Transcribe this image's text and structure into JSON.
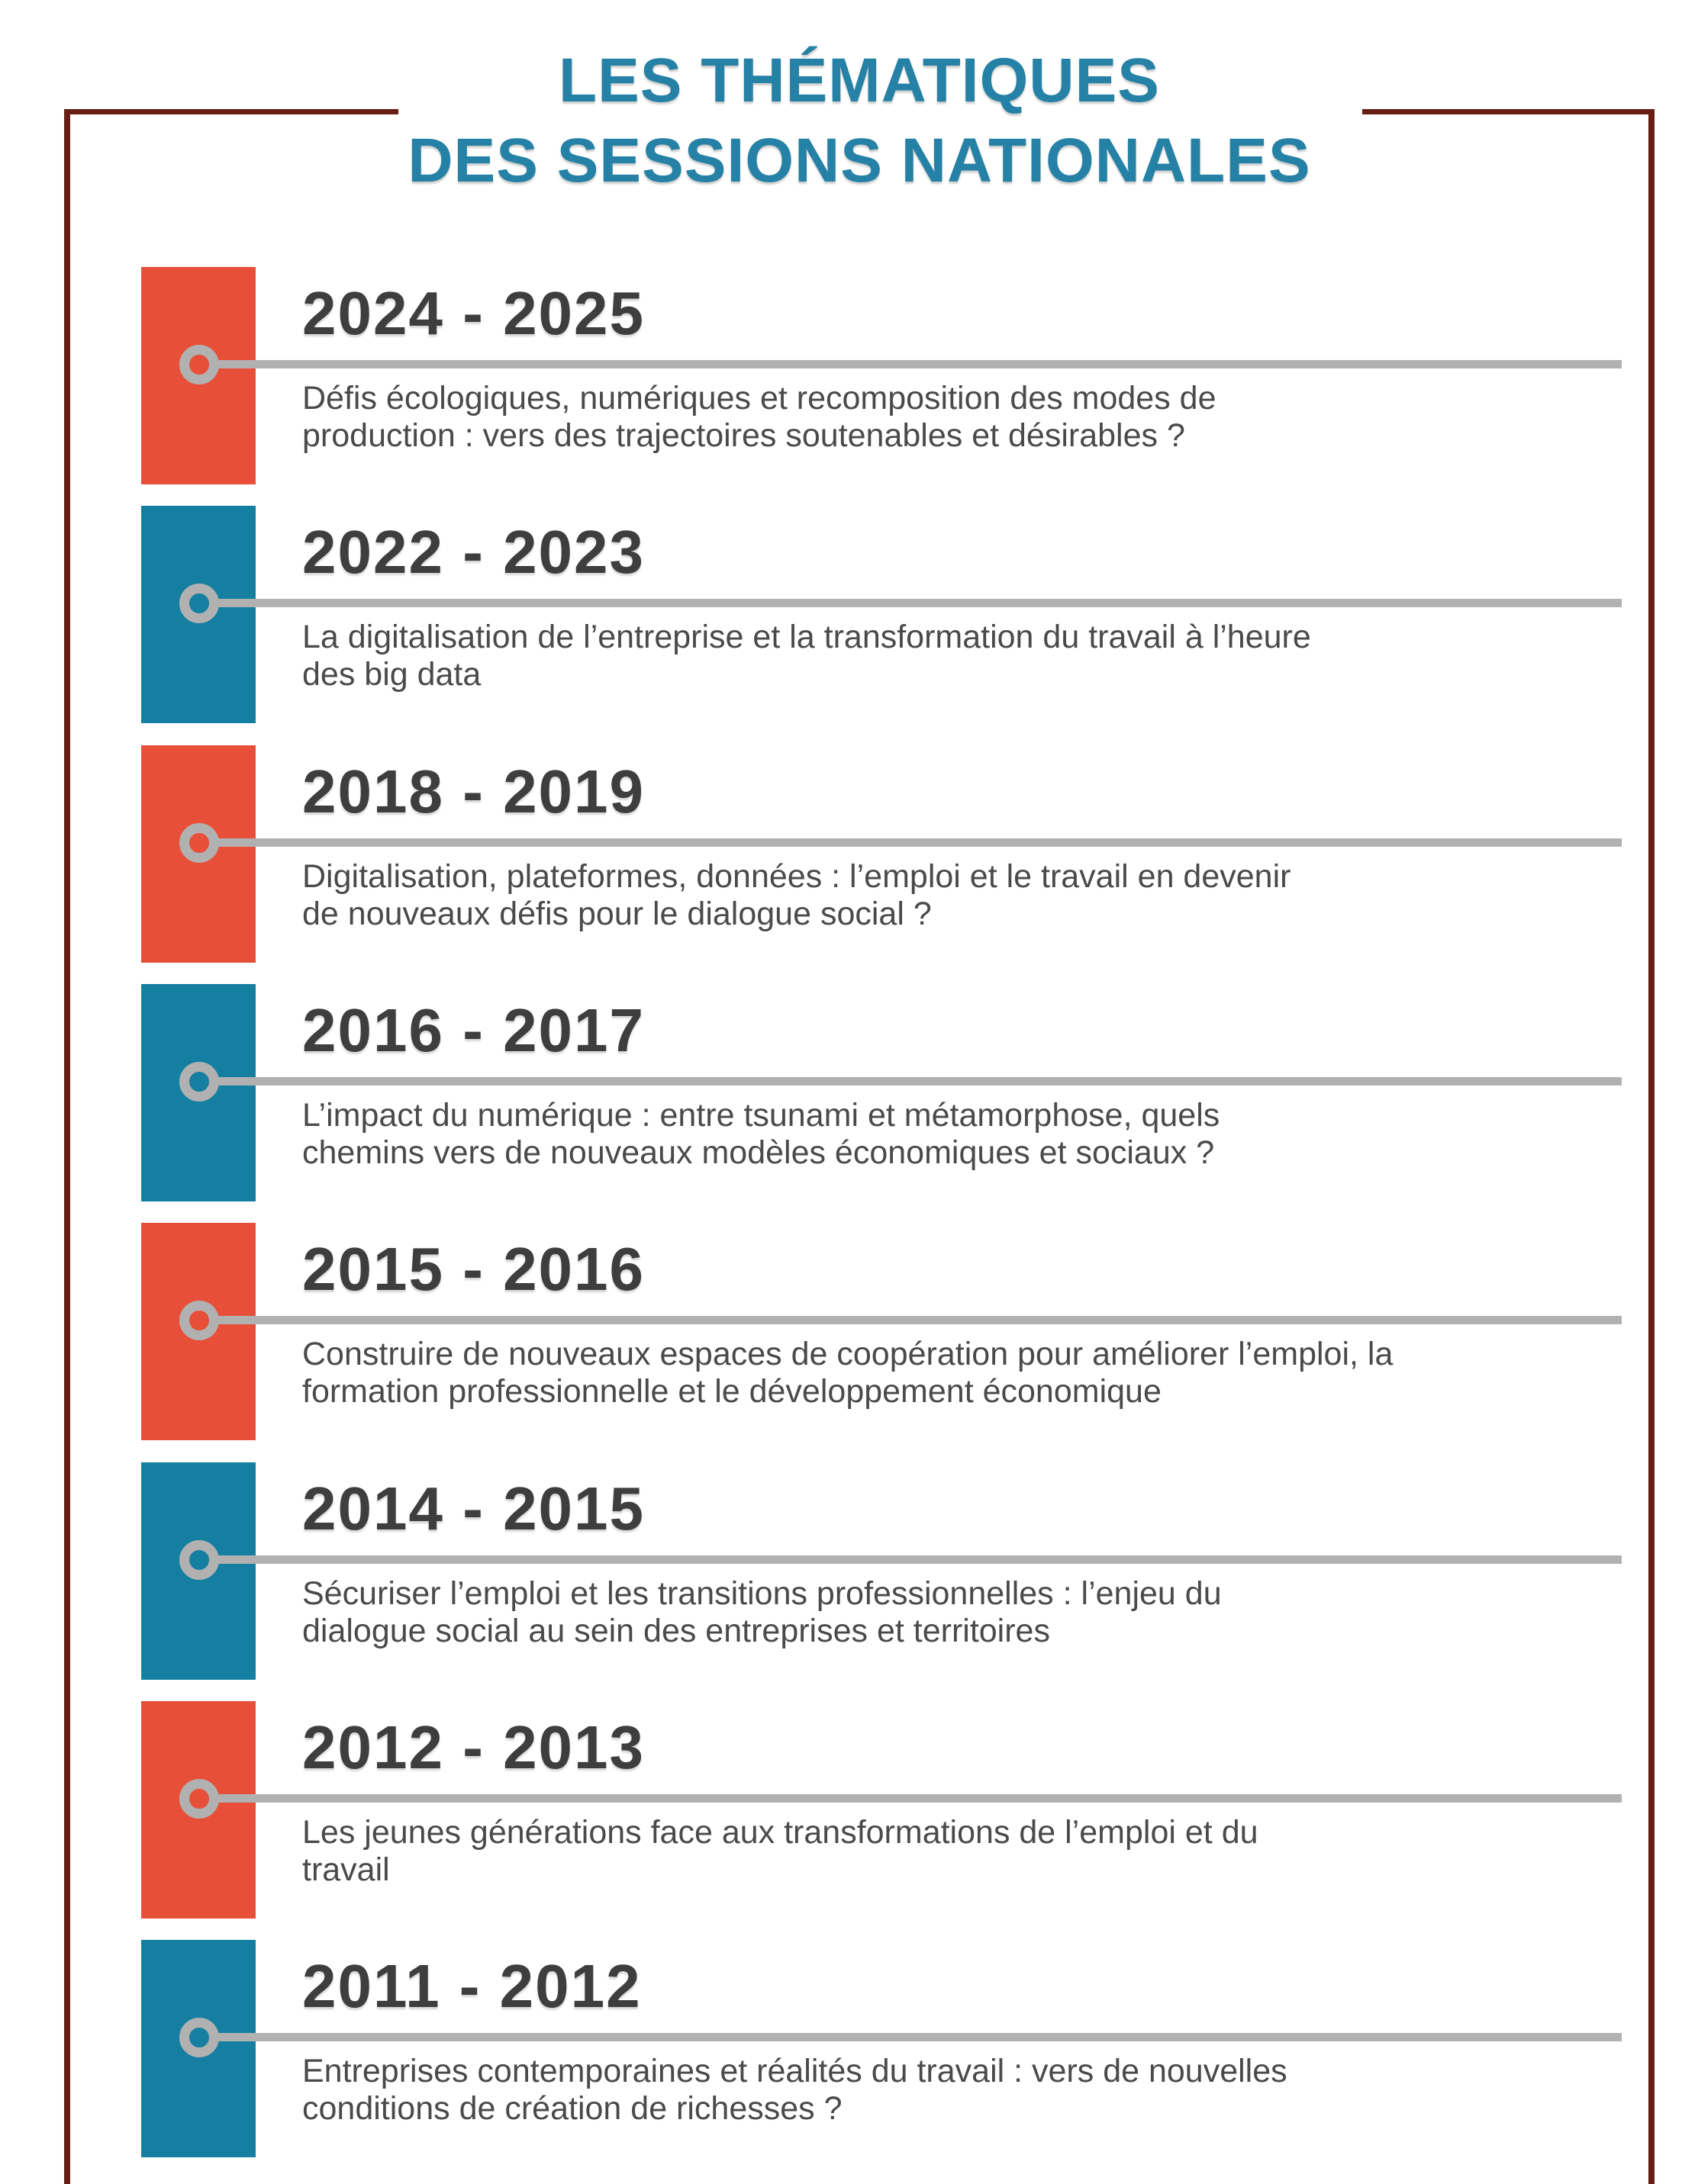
{
  "title": {
    "line1": "LES THÉMATIQUES",
    "line2": "DES SESSIONS NATIONALES"
  },
  "timeline": {
    "entries": [
      {
        "years": "2024 - 2025",
        "accent": "red",
        "description_lines": [
          "Défis écologiques, numériques et recomposition des modes de",
          "production : vers des trajectoires soutenables et désirables ?"
        ]
      },
      {
        "years": "2022 - 2023",
        "accent": "teal",
        "description_lines": [
          "La digitalisation de l’entreprise et la transformation du travail à l’heure",
          "des big data"
        ]
      },
      {
        "years": "2018 - 2019",
        "accent": "red",
        "description_lines": [
          "Digitalisation, plateformes, données : l’emploi et le travail en devenir",
          "de nouveaux défis pour le dialogue social ?"
        ]
      },
      {
        "years": "2016 - 2017",
        "accent": "teal",
        "description_lines": [
          "L’impact du numérique : entre tsunami et métamorphose, quels",
          "chemins vers de nouveaux modèles économiques et sociaux ?"
        ]
      },
      {
        "years": "2015 - 2016",
        "accent": "red",
        "description_lines": [
          "Construire de nouveaux espaces de coopération pour améliorer l’emploi, la",
          "formation professionnelle et le développement économique"
        ]
      },
      {
        "years": "2014 - 2015",
        "accent": "teal",
        "description_lines": [
          "Sécuriser l’emploi et les transitions professionnelles : l’enjeu du",
          "dialogue social au sein des entreprises et territoires"
        ]
      },
      {
        "years": "2012 - 2013",
        "accent": "red",
        "description_lines": [
          "Les jeunes générations face aux transformations de l’emploi et du",
          "travail"
        ]
      },
      {
        "years": "2011 - 2012",
        "accent": "teal",
        "description_lines": [
          "Entreprises contemporaines et réalités du travail : vers de nouvelles",
          "conditions de création de richesses ?"
        ]
      }
    ]
  },
  "colors": {
    "red": "#e84f38",
    "teal": "#147fa0",
    "title_teal": "#2581a5",
    "frame_maroon": "#671f14",
    "line_gray": "#b1b1b1",
    "heading_text": "#3e3e3e",
    "body_text": "#4a4a4a"
  }
}
